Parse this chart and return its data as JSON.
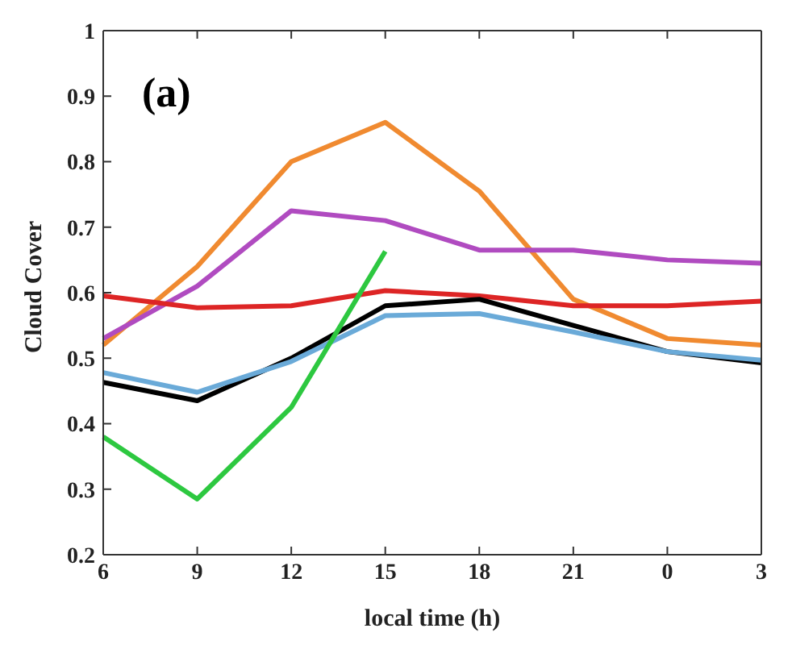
{
  "chart_data": {
    "type": "line",
    "xlabel": "local time (h)",
    "ylabel": "Cloud Cover",
    "annotations": [
      "(a)"
    ],
    "categories": [
      "6",
      "9",
      "12",
      "15",
      "18",
      "21",
      "0",
      "3"
    ],
    "ylim": [
      0.2,
      1
    ],
    "yticks": [
      0.2,
      0.3,
      0.4,
      0.5,
      0.6,
      0.7,
      0.8,
      0.9,
      1
    ],
    "grid": false,
    "legend": false,
    "marker": "none",
    "line_style": "solid",
    "series": [
      {
        "color": "#f08a30",
        "values": [
          0.52,
          0.64,
          0.8,
          0.86,
          0.755,
          0.59,
          0.53,
          0.52
        ]
      },
      {
        "color": "#b04bc0",
        "values": [
          0.53,
          0.61,
          0.725,
          0.71,
          0.665,
          0.665,
          0.65,
          0.645
        ]
      },
      {
        "color": "#dd2525",
        "values": [
          0.595,
          0.577,
          0.58,
          0.603,
          0.595,
          0.58,
          0.58,
          0.587
        ]
      },
      {
        "color": "#000000",
        "values": [
          0.463,
          0.435,
          0.5,
          0.58,
          0.59,
          0.55,
          0.51,
          0.493
        ]
      },
      {
        "color": "#6aaad8",
        "values": [
          0.478,
          0.448,
          0.495,
          0.565,
          0.568,
          0.54,
          0.51,
          0.497
        ]
      },
      {
        "color": "#2dc840",
        "values": [
          0.38,
          0.285,
          0.425,
          0.663,
          null,
          null,
          null,
          null
        ]
      }
    ]
  }
}
